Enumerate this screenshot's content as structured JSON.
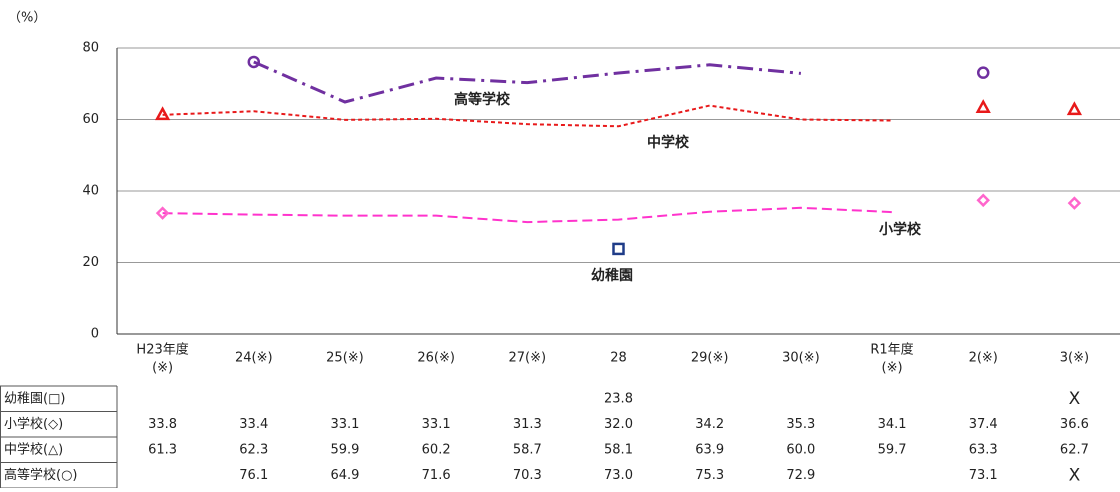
{
  "chart_data": {
    "type": "line",
    "y_label": "（%）",
    "categories": [
      [
        "H23年度",
        "(※)"
      ],
      "24(※)",
      "25(※)",
      "26(※)",
      "27(※)",
      "28",
      "29(※)",
      "30(※)",
      [
        "R1年度",
        "(※)"
      ],
      "2(※)",
      "3(※)"
    ],
    "ylim": [
      0,
      80
    ],
    "yticks": [
      0,
      20,
      40,
      60,
      80
    ],
    "grid": true,
    "joined": 9,
    "series": [
      {
        "name": "幼稚園(□)",
        "line_label": "幼稚園",
        "color": "#1f3c88",
        "marker": "square",
        "line_style": "dash",
        "marker_points": [
          5
        ],
        "values": [
          null,
          null,
          null,
          null,
          null,
          23.8,
          null,
          null,
          null,
          null,
          null
        ],
        "value_labels": [
          null,
          null,
          null,
          null,
          null,
          "23.8",
          null,
          null,
          null,
          null,
          "X"
        ]
      },
      {
        "name": "小学校(◇)",
        "line_label": "小学校",
        "color": "#ff33cc",
        "marker": "diamond",
        "line_style": "dash",
        "marker_points": [
          0,
          9,
          10
        ],
        "values": [
          33.8,
          33.4,
          33.1,
          33.1,
          31.3,
          32.0,
          34.2,
          35.3,
          34.1,
          37.4,
          36.6
        ],
        "value_labels": [
          "33.8",
          "33.4",
          "33.1",
          "33.1",
          "31.3",
          "32.0",
          "34.2",
          "35.3",
          "34.1",
          "37.4",
          "36.6"
        ]
      },
      {
        "name": "中学校(△)",
        "line_label": "中学校",
        "color": "#e8191a",
        "marker": "triangle",
        "line_style": "short-dash",
        "marker_points": [
          0,
          9,
          10
        ],
        "values": [
          61.3,
          62.3,
          59.9,
          60.2,
          58.7,
          58.1,
          63.9,
          60.0,
          59.7,
          63.3,
          62.7
        ],
        "value_labels": [
          "61.3",
          "62.3",
          "59.9",
          "60.2",
          "58.7",
          "58.1",
          "63.9",
          "60.0",
          "59.7",
          "63.3",
          "62.7"
        ]
      },
      {
        "name": "高等学校(○)",
        "line_label": "高等学校",
        "color": "#7030a0",
        "marker": "circle",
        "line_style": "dash-dot",
        "marker_points": [
          1,
          9
        ],
        "values": [
          null,
          76.1,
          64.9,
          71.6,
          70.3,
          73.0,
          75.3,
          72.9,
          null,
          73.1,
          null
        ],
        "value_labels": [
          null,
          "76.1",
          "64.9",
          "71.6",
          "70.3",
          "73.0",
          "75.3",
          "72.9",
          null,
          "73.1",
          "X"
        ]
      }
    ]
  }
}
